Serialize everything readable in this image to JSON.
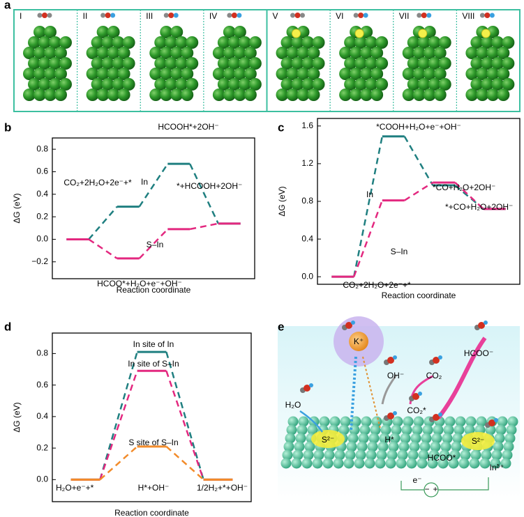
{
  "panels": [
    "a",
    "b",
    "c",
    "d",
    "e"
  ],
  "panel_a": {
    "labels": [
      "I",
      "II",
      "III",
      "IV",
      "V",
      "VI",
      "VII",
      "VIII"
    ]
  },
  "chart_data": [
    {
      "type": "energy",
      "ylabel": "ΔG (eV)",
      "xlabel": "Reaction coordinate",
      "ylim": [
        -0.35,
        0.9
      ],
      "yticks": [
        {
          "value": -0.2,
          "label": "−0.2"
        },
        {
          "value": 0,
          "label": "0.0"
        },
        0.2,
        0.4,
        0.6,
        0.8
      ],
      "series": [
        {
          "name": "In",
          "color": "#1f7f80",
          "values": [
            0,
            0.29,
            0.67,
            0.14
          ]
        },
        {
          "name": "S–In",
          "color": "#e3287f",
          "values": [
            0,
            -0.17,
            0.09,
            0.14
          ]
        }
      ],
      "annotations": [
        "HCOOH*+2OH⁻",
        "CO₂+2H₂O+2e⁻+*",
        "*+HCOOH+2OH⁻",
        "HCOO*+H₂O+e⁻+OH⁻"
      ]
    },
    {
      "type": "energy",
      "ylabel": "ΔG (eV)",
      "xlabel": "Reaction coordinate",
      "ylim": [
        -0.08,
        1.68
      ],
      "yticks": [
        {
          "value": 0,
          "label": "0.0"
        },
        0.4,
        0.8,
        1.2,
        1.6
      ],
      "series": [
        {
          "name": "In",
          "color": "#1f7f80",
          "values": [
            0,
            1.49,
            0.97,
            0.72
          ]
        },
        {
          "name": "S–In",
          "color": "#e3287f",
          "values": [
            0,
            0.81,
            1.0,
            0.72
          ]
        }
      ],
      "annotations": [
        "*COOH+H₂O+e⁻+OH⁻",
        "*CO+H₂O+2OH⁻",
        "*+CO+H₂O+2OH⁻",
        "CO₂+2H₂O+2e⁻+*"
      ]
    },
    {
      "type": "energy",
      "ylabel": "ΔG (eV)",
      "xlabel": "Reaction coordinate",
      "ylim": [
        -0.14,
        0.93
      ],
      "yticks": [
        {
          "value": 0,
          "label": "0.0"
        },
        0.2,
        0.4,
        0.6,
        0.8
      ],
      "series": [
        {
          "name": "In site of In",
          "color": "#1f7f80",
          "values": [
            0,
            0.81,
            0
          ]
        },
        {
          "name": "In site of S–In",
          "color": "#e3287f",
          "values": [
            0,
            0.69,
            0
          ]
        },
        {
          "name": "S site of S–In",
          "color": "#f28b2a",
          "values": [
            0,
            0.21,
            0
          ]
        }
      ],
      "annotations": [
        "H₂O+e⁻+*",
        "H*+OH⁻",
        "1/2H₂+*+OH⁻"
      ]
    }
  ],
  "panel_e": {
    "labels": [
      "K⁺",
      "OH⁻",
      "CO₂",
      "HCOO⁻",
      "H₂O",
      "CO₂*",
      "S²⁻",
      "H*",
      "HCOO*",
      "S²⁻",
      "Inᵟ⁺",
      "e⁻",
      "−",
      "+"
    ]
  }
}
